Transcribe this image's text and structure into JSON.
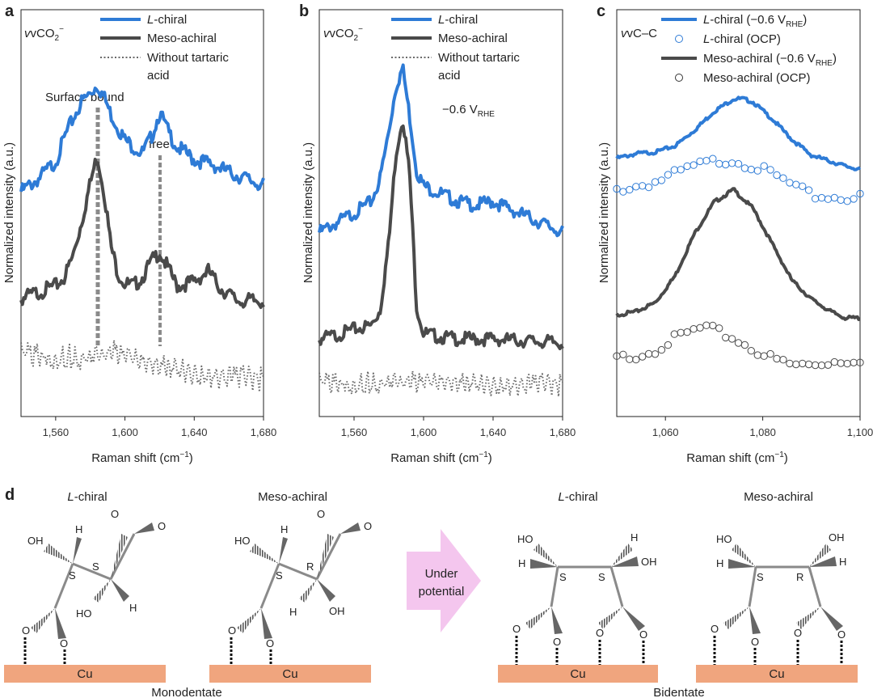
{
  "colors": {
    "l_chiral": "#2e7bd6",
    "meso_achiral": "#4a4a4a",
    "without": "#6a6a6a",
    "s_label": "#3a8fd0",
    "r_label": "#c0392b",
    "cu": "#f0a57e",
    "arrow": "#f4c6ee",
    "bond": "#8a8a8a"
  },
  "panel_a": {
    "label": "a",
    "species": "vCO",
    "species_sub": "2",
    "species_sup": "−",
    "legend": [
      "L-chiral",
      "Meso-achiral",
      "Without tartaric",
      "acid"
    ],
    "legend_italic_prefix": "L",
    "legend_l_rest": "-chiral",
    "annot_surface": "Surface bound",
    "annot_free": "free",
    "ylabel": "Normalized intensity (a.u.)",
    "xlabel": "Raman shift (cm",
    "xlabel_sup": "−1",
    "xlabel_end": ")",
    "ticks": [
      "1,560",
      "1,600",
      "1,640",
      "1,680"
    ]
  },
  "panel_b": {
    "label": "b",
    "species": "vCO",
    "species_sub": "2",
    "species_sup": "−",
    "legend_l_rest": "-chiral",
    "legend": [
      "L-chiral",
      "Meso-achiral",
      "Without tartaric",
      "acid"
    ],
    "potential": "−0.6 V",
    "potential_sub": "RHE",
    "ylabel": "Normalized intensity (a.u.)",
    "xlabel": "Raman shift (cm",
    "xlabel_sup": "−1",
    "xlabel_end": ")",
    "ticks": [
      "1,560",
      "1,600",
      "1,640",
      "1,680"
    ]
  },
  "panel_c": {
    "label": "c",
    "species": "vC–C",
    "legend_1a": "-chiral (−0.6 V",
    "legend_1b": "RHE",
    "legend_1c": ")",
    "legend_2": "-chiral (OCP)",
    "legend_3a": "Meso-achiral (−0.6 V",
    "legend_3b": "RHE",
    "legend_3c": ")",
    "legend_4": "Meso-achiral (OCP)",
    "ylabel": "Normalized intensity (a.u.)",
    "xlabel": "Raman shift (cm",
    "xlabel_sup": "−1",
    "xlabel_end": ")",
    "ticks": [
      "1,060",
      "1,080",
      "1,100"
    ]
  },
  "panel_d": {
    "label": "d",
    "titles": [
      "-chiral",
      "Meso-achiral",
      "-chiral",
      "Meso-achiral"
    ],
    "arrow_text": [
      "Under",
      "potential"
    ],
    "cu": "Cu",
    "monodentate": "Monodentate",
    "bidentate": "Bidentate",
    "atoms": {
      "O": "O",
      "OH": "OH",
      "HO": "HO",
      "H": "H",
      "S": "S",
      "R": "R"
    }
  },
  "chart_data": [
    {
      "type": "line",
      "panel": "a",
      "xlim": [
        1540,
        1680
      ],
      "xticks": [
        1560,
        1600,
        1640,
        1680
      ],
      "xlabel": "Raman shift (cm−1)",
      "ylabel": "Normalized intensity (a.u.)",
      "series": [
        {
          "name": "L-chiral",
          "x": [
            1540,
            1550,
            1560,
            1565,
            1570,
            1575,
            1580,
            1584,
            1588,
            1592,
            1596,
            1600,
            1605,
            1610,
            1615,
            1620,
            1625,
            1630,
            1635,
            1640,
            1650,
            1660,
            1670,
            1680
          ],
          "y": [
            0.3,
            0.36,
            0.44,
            0.55,
            0.64,
            0.72,
            0.76,
            0.8,
            0.74,
            0.66,
            0.6,
            0.54,
            0.51,
            0.48,
            0.55,
            0.67,
            0.58,
            0.51,
            0.48,
            0.45,
            0.43,
            0.39,
            0.36,
            0.33
          ]
        },
        {
          "name": "Meso-achiral",
          "x": [
            1540,
            1550,
            1560,
            1565,
            1570,
            1575,
            1580,
            1584,
            1588,
            1592,
            1596,
            1600,
            1605,
            1610,
            1615,
            1620,
            1625,
            1630,
            1640,
            1648,
            1655,
            1665,
            1680
          ],
          "y": [
            -0.2,
            -0.17,
            -0.14,
            -0.1,
            0.0,
            0.16,
            0.34,
            0.47,
            0.3,
            0.04,
            -0.08,
            -0.13,
            -0.14,
            -0.1,
            -0.03,
            0.02,
            -0.06,
            -0.14,
            -0.12,
            -0.07,
            -0.15,
            -0.21,
            -0.21
          ]
        },
        {
          "name": "Without tartaric acid",
          "x": [
            1540,
            1560,
            1580,
            1595,
            1610,
            1630,
            1650,
            1680
          ],
          "y": [
            -0.46,
            -0.47,
            -0.47,
            -0.45,
            -0.5,
            -0.53,
            -0.56,
            -0.58
          ]
        }
      ]
    },
    {
      "type": "line",
      "panel": "b",
      "xlim": [
        1540,
        1680
      ],
      "xticks": [
        1560,
        1600,
        1640,
        1680
      ],
      "xlabel": "Raman shift (cm−1)",
      "ylabel": "Normalized intensity (a.u.)",
      "series": [
        {
          "name": "L-chiral",
          "x": [
            1540,
            1550,
            1560,
            1570,
            1575,
            1580,
            1584,
            1588,
            1592,
            1596,
            1600,
            1610,
            1620,
            1630,
            1640,
            1650,
            1660,
            1670,
            1680
          ],
          "y": [
            0.2,
            0.25,
            0.3,
            0.36,
            0.48,
            0.72,
            0.95,
            1.05,
            0.8,
            0.52,
            0.44,
            0.4,
            0.36,
            0.34,
            0.36,
            0.32,
            0.28,
            0.24,
            0.2
          ]
        },
        {
          "name": "Meso-achiral",
          "x": [
            1540,
            1550,
            1560,
            1570,
            1575,
            1580,
            1584,
            1588,
            1592,
            1596,
            1600,
            1610,
            1620,
            1640,
            1660,
            1680
          ],
          "y": [
            -0.35,
            -0.33,
            -0.3,
            -0.28,
            -0.2,
            0.15,
            0.6,
            0.8,
            0.5,
            -0.18,
            -0.32,
            -0.34,
            -0.35,
            -0.35,
            -0.36,
            -0.37
          ]
        },
        {
          "name": "Without tartaric acid",
          "x": [
            1540,
            1580,
            1620,
            1680
          ],
          "y": [
            -0.58,
            -0.57,
            -0.58,
            -0.59
          ]
        }
      ]
    },
    {
      "type": "line",
      "panel": "c",
      "xlim": [
        1050,
        1100
      ],
      "xticks": [
        1060,
        1080,
        1100
      ],
      "xlabel": "Raman shift (cm−1)",
      "ylabel": "Normalized intensity (a.u.)",
      "series": [
        {
          "name": "L-chiral (−0.6 VRHE)",
          "style": "line",
          "x": [
            1050,
            1054,
            1058,
            1062,
            1066,
            1070,
            1074,
            1076,
            1078,
            1082,
            1086,
            1090,
            1094,
            1097,
            1100
          ],
          "y": [
            0.6,
            0.63,
            0.64,
            0.68,
            0.78,
            0.9,
            0.98,
            0.98,
            0.96,
            0.85,
            0.72,
            0.62,
            0.58,
            0.55,
            0.53
          ]
        },
        {
          "name": "L-chiral (OCP)",
          "style": "circles",
          "x": [
            1050,
            1054,
            1058,
            1062,
            1066,
            1070,
            1074,
            1078,
            1082,
            1086,
            1090,
            1094,
            1100
          ],
          "y": [
            0.4,
            0.42,
            0.45,
            0.5,
            0.55,
            0.58,
            0.59,
            0.55,
            0.5,
            0.43,
            0.36,
            0.35,
            0.35
          ]
        },
        {
          "name": "Meso-achiral (−0.6 VRHE)",
          "style": "line",
          "x": [
            1050,
            1054,
            1058,
            1062,
            1066,
            1070,
            1074,
            1078,
            1082,
            1086,
            1090,
            1094,
            1097,
            1100
          ],
          "y": [
            -0.4,
            -0.38,
            -0.32,
            -0.15,
            0.12,
            0.32,
            0.4,
            0.28,
            0.05,
            -0.18,
            -0.3,
            -0.38,
            -0.42,
            -0.42
          ]
        },
        {
          "name": "Meso-achiral (OCP)",
          "style": "circles",
          "x": [
            1050,
            1054,
            1058,
            1062,
            1066,
            1068,
            1070,
            1074,
            1078,
            1082,
            1086,
            1090,
            1094,
            1100
          ],
          "y": [
            -0.68,
            -0.66,
            -0.62,
            -0.55,
            -0.5,
            -0.48,
            -0.5,
            -0.55,
            -0.62,
            -0.68,
            -0.72,
            -0.72,
            -0.7,
            -0.68
          ]
        }
      ]
    }
  ]
}
